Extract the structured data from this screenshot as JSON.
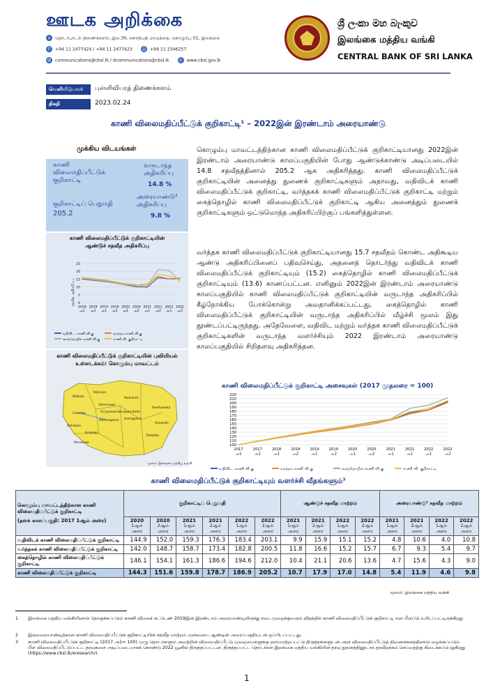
{
  "header": {
    "dept_title": "ஊடக அறிக்கை",
    "address": "தொடர்பாடல் திணைக்களம், இல.30, சனாதிபதி மாவத்தை, கொழும்பு 01, இலங்கை",
    "phones": "+94 11 2477424 / +94 11 2477423",
    "fax": "+94 11 2346257",
    "emails": "communications@cbsl.lk / dcommunications@cbsl.lk",
    "website": "www.cbsl.gov.lk",
    "bank_name_sinhala": "ශ්‍රී ලංකා මහ බැංකුව",
    "bank_name_tamil": "இலங்கை மத்திய வங்கி",
    "bank_name_english": "CENTRAL BANK OF SRI LANKA"
  },
  "release": {
    "issued_by_label": "வெளியிடுபவர்",
    "issued_by_value": "புள்ளிவிபரத் திணைக்களம்",
    "date_label": "திகதி",
    "date_value": "2023.02.24"
  },
  "title": "காணி விலைமதிப்பீட்டுக் குறிகாட்டி¹ – 2022இன் இரண்டாம் அரையாண்டு",
  "highlights": {
    "heading": "முக்கிய விடயங்கள்",
    "lvi_label": "காணி விலைமதிப்பீட்டுக் குறிகாட்டி",
    "index_value_label": "குறிகாட்டிப் பெறுமதி",
    "index_value": "205.2",
    "yoy_label": "வருடாந்த அதிகரிப்பு",
    "yoy_value": "14.8 %",
    "hoh_label": "அரையாண்டு² அதிகரிப்பு",
    "hoh_value": "9.8 %"
  },
  "left_chart": {
    "title": "காணி விலைமதிப்பீட்டுக் குறிகாட்டியின் ஆண்டுச் சதவீத அதிகரிப்பு",
    "ylabel": "சதவீத அதிகரிப்பு"
  },
  "map": {
    "title": "காணி விலைமதிப்பீட்டுக் குறிகாட்டியின் புவியியல் உள்ளடக்கம்: கொழும்பு மாவட்டம்",
    "source": "மூலம்: இலங்கை மத்திய வங்கி",
    "places": [
      "Wattala",
      "Kelaniya",
      "Kolonnawa",
      "Kaduwela",
      "Colombo",
      "Maharagama",
      "Homagama",
      "Kesbewa",
      "Moratuwa",
      "Dehiwala",
      "Sri Jayawardenepura Kotte",
      "Padukka",
      "Seethawaka",
      "Hanwella"
    ]
  },
  "paragraphs": [
    "கொழும்பு மாவட்டத்திற்கான காணி விலைமதிப்பீட்டுக் குறிகாட்டியானது 2022இன் இரண்டாம் அரையாண்டு காலப்பகுதியின் போது ஆண்டுக்காண்டு அடிப்படையில் 14.8 சதவீதத்தினால் 205.2 ஆக அதிகரித்தது. காணி விலைமதிப்பீட்டுக் குறிகாட்டியின் அனைத்து துணைக் குறிகாட்டிகளும் அதாவது, வதிவிடக் காணி விலைமதிப்பீட்டுக் குறிகாட்டி, வர்த்தகக் காணி விலைமதிப்பீட்டுக் குறிகாட்டி மற்றும் கைத்தொழில் காணி விலைமதிப்பீட்டுக் குறிகாட்டி ஆகிய அனைத்தும் துணைக் குறிகாட்டிகளும் ஒட்டுமொத்த அதிகரிப்பிற்குப் பங்களித்துள்ளன.",
    "வர்த்தக காணி விலைமதிப்பீட்டுக் குறிகாட்டியானது 15.7 சதவீதம் கொண்ட அதிகூடிய ஆண்டு அதிகரிப்பினைப் பதிவுசெய்து, அதனைத் தொடர்ந்து வதிவிடக் காணி விலைமதிப்பீட்டுக் குறிகாட்டியும் (15.2) கைத்தொழில் காணி விலைமதிப்பீட்டுக் குறிகாட்டியும் (13.6) காணப்பட்டன. எனினும் 2022இன் இரண்டாம் அரையாண்டு காலப்பகுதியில் காணி விலைமதிப்பீட்டுக் குறிகாட்டியின் வருடாந்த அதிகரிப்பில் கீழ்நோக்கிய போக்கொன்று அவதானிக்கப்பட்டது, கைத்தொழில் காணி விலைமதிப்பீட்டுக் குறிகாட்டியின் வருடாந்த அதிகரிப்பில் வீழ்ச்சி மூலம் இது தூண்டப்பட்டிருந்தது. அதேவேளை, வதிவிட மற்றும் வர்த்தக காணி விலைமதிப்பீட்டுக் குறிகாட்டிகளின் வருடாந்த வளர்ச்சியும் 2022 இரண்டாம் அரையாண்டு காலப்பகுதியில் சிறிதளவு அதிகரித்தன."
  ],
  "table": {
    "title": "காணி விலைமதிப்பீட்டுக் குறிகாட்டியும் வளர்ச்சி வீதங்களும்³",
    "corner": "கொழும்பு மாவட்டத்திற்கான காணி விலைமதிப்பீட்டுக் குறிகாட்டி",
    "base_note": "(தளக் காலப்பகுதி: 2017 1ஆம் அரை)",
    "groups": [
      "குறிகாட்டிப் பெறுமதி",
      "ஆண்டுச் சதவீத மாற்றம்",
      "அரையாண்டு² சதவீத மாற்றம்"
    ],
    "col_years": [
      "2020",
      "2020",
      "2021",
      "2021",
      "2022",
      "2022",
      "2021",
      "2021",
      "2022",
      "2022",
      "2021",
      "2021",
      "2022",
      "2022"
    ],
    "col_halves": [
      "1ஆம் அரை",
      "2ஆம் அரை",
      "1ஆம் அரை",
      "2ஆம் அரை",
      "1ஆம் அரை",
      "2ஆம் அரை",
      "1ஆம் அரை",
      "2ஆம் அரை",
      "1ஆம் அரை",
      "2ஆம் அரை",
      "1ஆம் அரை",
      "2ஆம் அரை",
      "1ஆம் அரை",
      "2ஆம் அரை"
    ],
    "rows": [
      {
        "label": "வதிவிடக் காணி விலைமதிப்பீட்டுக் குறிகாட்டி",
        "values": [
          "144.9",
          "152.0",
          "159.3",
          "176.3",
          "183.4",
          "203.1",
          "9.9",
          "15.9",
          "15.1",
          "15.2",
          "4.8",
          "10.6",
          "4.0",
          "10.8"
        ]
      },
      {
        "label": "வர்த்தகக் காணி விலைமதிப்பீட்டுக் குறிகாட்டி",
        "values": [
          "142.0",
          "148.7",
          "158.7",
          "173.4",
          "182.8",
          "200.5",
          "11.8",
          "16.6",
          "15.2",
          "15.7",
          "6.7",
          "9.3",
          "5.4",
          "9.7"
        ]
      },
      {
        "label": "கைத்தொழில் காணி விலைமதிப்பீட்டுக் குறிகாட்டி",
        "values": [
          "146.1",
          "154.1",
          "161.3",
          "186.6",
          "194.6",
          "212.0",
          "10.4",
          "21.1",
          "20.6",
          "13.6",
          "4.7",
          "15.6",
          "4.3",
          "9.0"
        ]
      },
      {
        "label": "காணி விலைமதிப்பீட்டுக் குறிகாட்டி",
        "values": [
          "144.3",
          "151.6",
          "159.8",
          "178.7",
          "186.9",
          "205.2",
          "10.7",
          "17.9",
          "17.0",
          "14.8",
          "5.4",
          "11.9",
          "4.6",
          "9.8"
        ]
      }
    ],
    "source": "மூலம்: இலங்கை மத்திய வங்கி"
  },
  "footnotes": [
    {
      "n": "1",
      "text": "இலங்கை மத்திய வங்கியினால் தொகுக்கப்படும் காணி விலைச் சுட்டெண் 2019இன் இரண்டாம் அரையாண்டிலிருந்து நடைமுறைக்குவரும் விதத்தில் காணி விலைமதிப்பீட்டுக் குறிகாட்டி என மீளப்பெயரிடப்பட்டிருக்கிறது"
    },
    {
      "n": "2",
      "text": "இவ்வரையாண்டிற்கான காணி விலைமதிப்பீட்டுக் குறிகாட்டியின் சதவீத மாற்றம் முன்னைய ஆண்டின் அரைப்பகுதியுடன் ஒப்பிடப்பட்டது."
    },
    {
      "n": "3",
      "text": "காணி விலைமதிப்பீட்டுக் குறிகாட்டி (2017 அ1= 100) முழு தொடர்களும் அவற்றின் விலைமதிப்பீட்டு முறைமைகளுக்கு தரம்மாற்றப்பட்டு திருத்தங்களுடன் அரச விலைமதிப்பீட்டுத் திணைக்களத்தினால் வழங்கப்படும் மீள விலைமதிப்பீட்டுப்பட்ட தரவுகளை அடிப்படையாகக் கொண்டு 2022 யூனில் திருத்தப்பட்டன. திருத்தப்பட்ட தொடர்கள் இலங்கை மத்திய வங்கியின் தரவு நூலகத்தினூடாக தரவிறக்கம் செய்வதற்கு கிடைக்கப்பெறுகிறது (https://www.cbsl.lk/eresearch/)."
    }
  ],
  "page_number": "1",
  "chart_data": [
    {
      "type": "line",
      "title": "காணி விலைமதிப்பீட்டுக் குறிகாட்டியின் ஆண்டுச் சதவீத அதிகரிப்பு",
      "xlabel": "",
      "ylabel": "சதவீத அதிகரிப்பு",
      "x": [
        "2018 அ1",
        "2018 அ2",
        "2019 அ1",
        "2019 அ2",
        "2020 அ1",
        "2020 அ2",
        "2021 அ1",
        "2021 அ2",
        "2022 அ1",
        "2022 அ2"
      ],
      "ylim": [
        0,
        25
      ],
      "series": [
        {
          "name": "வதிவிட. காணி வி.கு",
          "color": "#2f63b6",
          "values": [
            15.0,
            14.2,
            13.5,
            12.6,
            11.3,
            10.0,
            9.9,
            15.9,
            15.1,
            15.2
          ]
        },
        {
          "name": "வர்த்தக காணி வி.கு",
          "color": "#ed7d31",
          "values": [
            15.8,
            15.2,
            14.0,
            12.8,
            11.5,
            11.0,
            11.8,
            16.6,
            15.2,
            15.7
          ]
        },
        {
          "name": "கைத்தொழில் காணி வி.கு",
          "color": "#a5a5a5",
          "values": [
            16.0,
            15.0,
            14.5,
            13.2,
            12.0,
            11.3,
            10.4,
            21.1,
            20.6,
            13.6
          ]
        },
        {
          "name": "காணி வி. குறிகாட்டி",
          "color": "#f2c314",
          "values": [
            15.5,
            14.6,
            13.9,
            12.9,
            11.6,
            10.6,
            10.7,
            17.9,
            17.0,
            14.8
          ]
        }
      ],
      "legend": "bottom"
    },
    {
      "type": "line",
      "title": "காணி விலைமதிப்பீட்டுக் குறிகாட்டி அசைவுகள் (2017 முதலரை = 100)",
      "x": [
        "2017 அ1",
        "2017 அ2",
        "2018 அ1",
        "2018 அ2",
        "2019 அ1",
        "2019 அ2",
        "2020 அ1",
        "2020 அ2",
        "2021 அ1",
        "2021 அ2",
        "2022 அ1",
        "2022 அ2"
      ],
      "ylim": [
        100,
        220
      ],
      "yticks": [
        100,
        110,
        120,
        130,
        140,
        150,
        160,
        170,
        180,
        190,
        200,
        210,
        220
      ],
      "series": [
        {
          "name": "வதிவிட. காணி வி.கு",
          "color": "#2f63b6",
          "values": [
            100,
            108.5,
            116.5,
            124.0,
            131.8,
            138.3,
            144.9,
            152.0,
            159.3,
            176.3,
            183.4,
            203.1
          ]
        },
        {
          "name": "வர்த்தக காணி வி.கு",
          "color": "#ed7d31",
          "values": [
            100,
            107.8,
            115.5,
            122.5,
            129.5,
            135.5,
            142.0,
            148.7,
            158.7,
            173.4,
            182.8,
            200.5
          ]
        },
        {
          "name": "கைத்தொழில் காணி வி.கு",
          "color": "#a5a5a5",
          "values": [
            100,
            108.6,
            117.0,
            124.7,
            132.3,
            139.2,
            146.1,
            154.1,
            161.3,
            186.6,
            194.6,
            212.0
          ]
        },
        {
          "name": "காணி வி. குறிகாட்டி",
          "color": "#f2c314",
          "values": [
            100,
            108.3,
            116.3,
            123.8,
            131.3,
            137.8,
            144.3,
            151.6,
            159.8,
            178.7,
            186.9,
            205.2
          ]
        }
      ],
      "legend": "bottom"
    }
  ]
}
